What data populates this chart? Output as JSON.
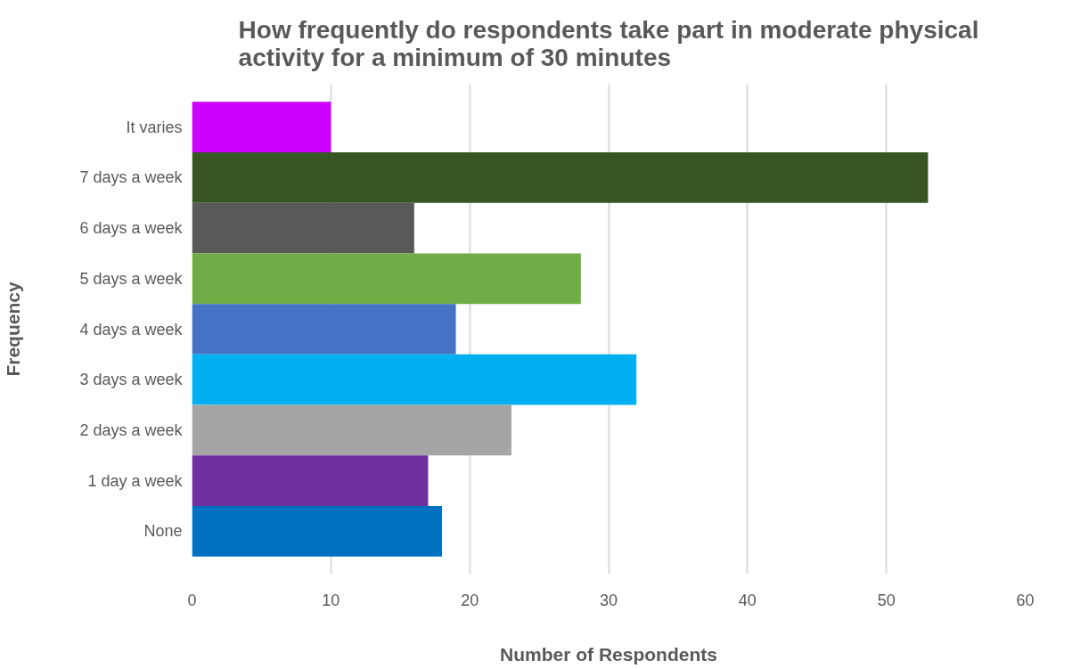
{
  "chart_data": {
    "type": "bar",
    "orientation": "horizontal",
    "title": "How frequently do respondents take part in moderate physical\nactivity for a minimum of 30 minutes",
    "xlabel": "Number of Respondents",
    "ylabel": "Frequency",
    "categories": [
      "It varies",
      "7 days a week",
      "6 days a week",
      "5 days a week",
      "4 days a week",
      "3 days a week",
      "2 days a week",
      "1 day a week",
      "None"
    ],
    "values": [
      10,
      53,
      16,
      28,
      19,
      32,
      23,
      17,
      18
    ],
    "colors": [
      "#cc00ff",
      "#375623",
      "#595959",
      "#70ad47",
      "#4472c4",
      "#00b0f0",
      "#a5a5a5",
      "#7030a0",
      "#0070c0"
    ],
    "xlim": [
      0,
      60
    ],
    "xticks": [
      0,
      10,
      20,
      30,
      40,
      50,
      60
    ],
    "grid": "x"
  }
}
